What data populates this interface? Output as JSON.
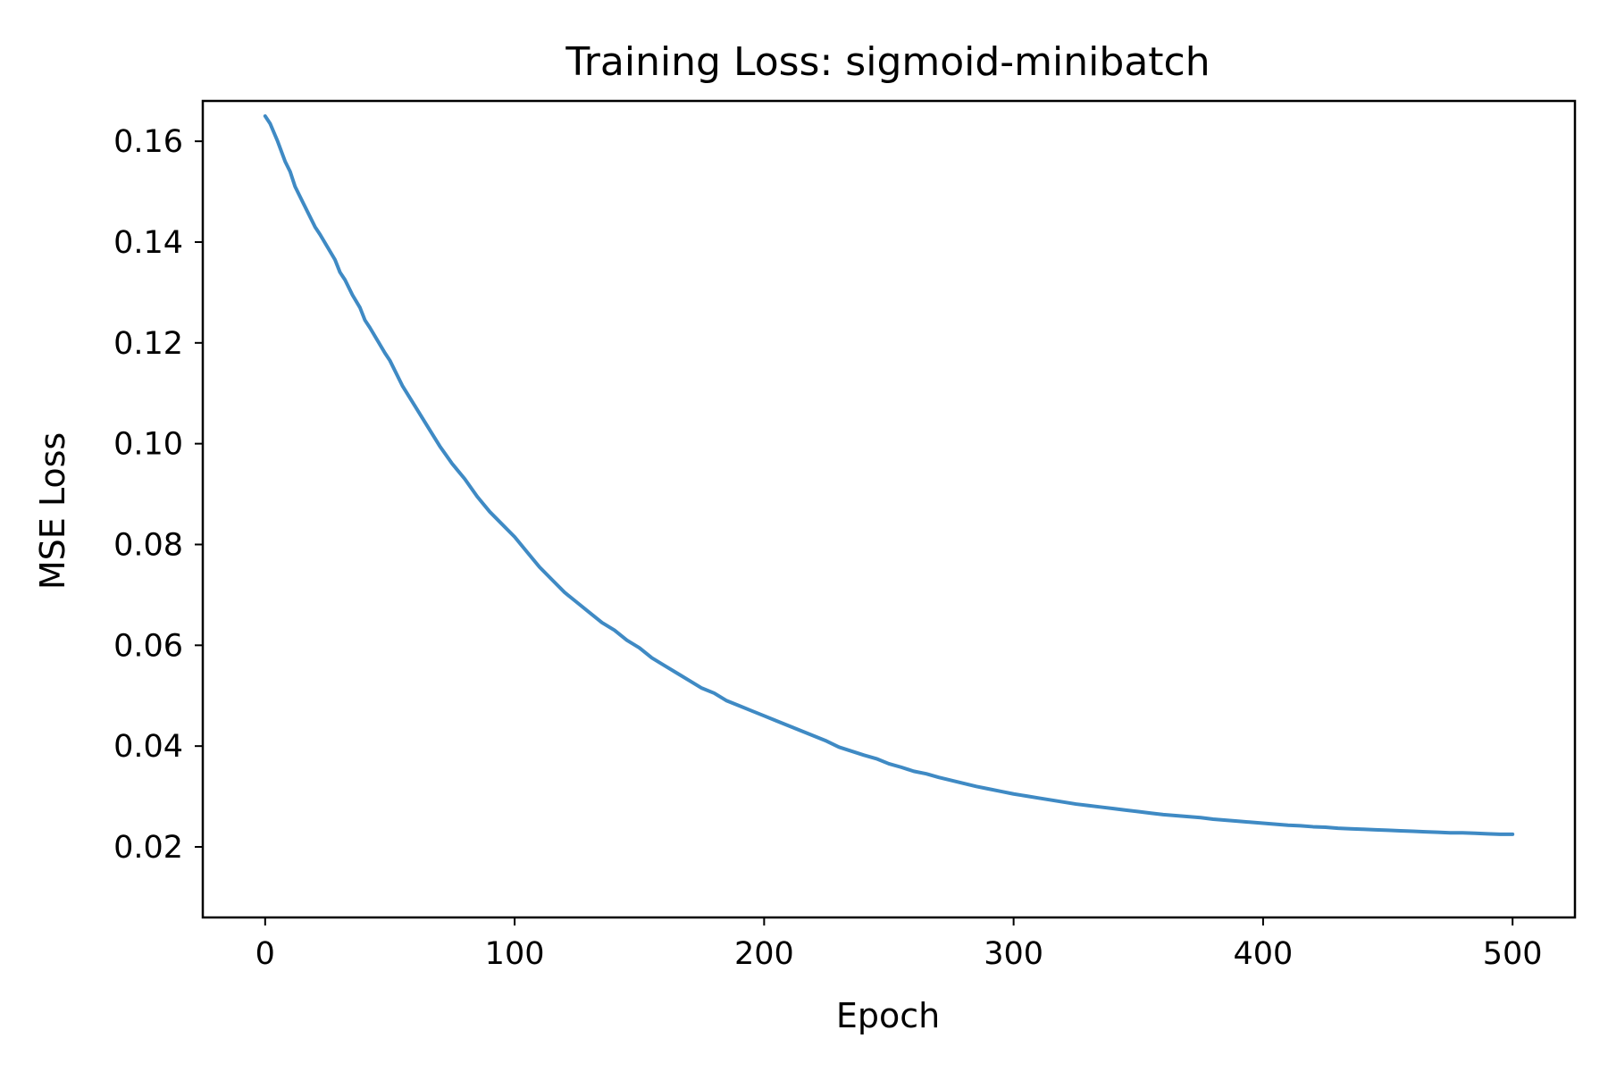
{
  "chart_data": {
    "type": "line",
    "title": "Training Loss: sigmoid-minibatch",
    "xlabel": "Epoch",
    "ylabel": "MSE Loss",
    "xlim": [
      -25,
      525
    ],
    "ylim": [
      0.006,
      0.168
    ],
    "x_ticks": [
      0,
      100,
      200,
      300,
      400,
      500
    ],
    "x_tick_labels": [
      "0",
      "100",
      "200",
      "300",
      "400",
      "500"
    ],
    "y_ticks": [
      0.02,
      0.04,
      0.06,
      0.08,
      0.1,
      0.12,
      0.14,
      0.16
    ],
    "y_tick_labels": [
      "0.02",
      "0.04",
      "0.06",
      "0.08",
      "0.10",
      "0.12",
      "0.14",
      "0.16"
    ],
    "grid": false,
    "legend": "none",
    "series": [
      {
        "color": "#3f8ac4",
        "x": [
          0,
          2,
          5,
          8,
          10,
          12,
          15,
          18,
          20,
          22,
          25,
          28,
          30,
          32,
          35,
          38,
          40,
          42,
          45,
          48,
          50,
          55,
          60,
          65,
          70,
          75,
          80,
          85,
          90,
          95,
          100,
          105,
          110,
          115,
          120,
          125,
          130,
          135,
          140,
          145,
          150,
          155,
          160,
          165,
          170,
          175,
          180,
          185,
          190,
          195,
          200,
          205,
          210,
          215,
          220,
          225,
          230,
          235,
          240,
          245,
          250,
          255,
          260,
          265,
          270,
          275,
          280,
          285,
          290,
          295,
          300,
          305,
          310,
          315,
          320,
          325,
          330,
          335,
          340,
          345,
          350,
          355,
          360,
          365,
          370,
          375,
          380,
          385,
          390,
          395,
          400,
          405,
          410,
          415,
          420,
          425,
          430,
          435,
          440,
          445,
          450,
          455,
          460,
          465,
          470,
          475,
          480,
          485,
          490,
          495,
          500
        ],
        "values": [
          0.165,
          0.1635,
          0.16,
          0.156,
          0.154,
          0.151,
          0.148,
          0.145,
          0.143,
          0.1415,
          0.139,
          0.1365,
          0.134,
          0.1325,
          0.1295,
          0.127,
          0.1245,
          0.123,
          0.1205,
          0.118,
          0.1165,
          0.1115,
          0.1075,
          0.1035,
          0.0995,
          0.096,
          0.093,
          0.0895,
          0.0865,
          0.084,
          0.0815,
          0.0785,
          0.0755,
          0.073,
          0.0705,
          0.0685,
          0.0665,
          0.0645,
          0.063,
          0.061,
          0.0595,
          0.0575,
          0.056,
          0.0545,
          0.053,
          0.0515,
          0.0505,
          0.049,
          0.048,
          0.047,
          0.046,
          0.045,
          0.044,
          0.043,
          0.042,
          0.041,
          0.0398,
          0.039,
          0.0382,
          0.0375,
          0.0365,
          0.0358,
          0.035,
          0.0345,
          0.0338,
          0.0332,
          0.0326,
          0.032,
          0.0315,
          0.031,
          0.0305,
          0.0301,
          0.0297,
          0.0293,
          0.0289,
          0.0285,
          0.0282,
          0.0279,
          0.0276,
          0.0273,
          0.027,
          0.0267,
          0.0264,
          0.0262,
          0.026,
          0.0258,
          0.0255,
          0.0253,
          0.0251,
          0.0249,
          0.0247,
          0.0245,
          0.0243,
          0.0242,
          0.024,
          0.0239,
          0.0237,
          0.0236,
          0.0235,
          0.0234,
          0.0233,
          0.0232,
          0.0231,
          0.023,
          0.0229,
          0.0228,
          0.0228,
          0.0227,
          0.0226,
          0.0225,
          0.0225
        ]
      }
    ]
  }
}
